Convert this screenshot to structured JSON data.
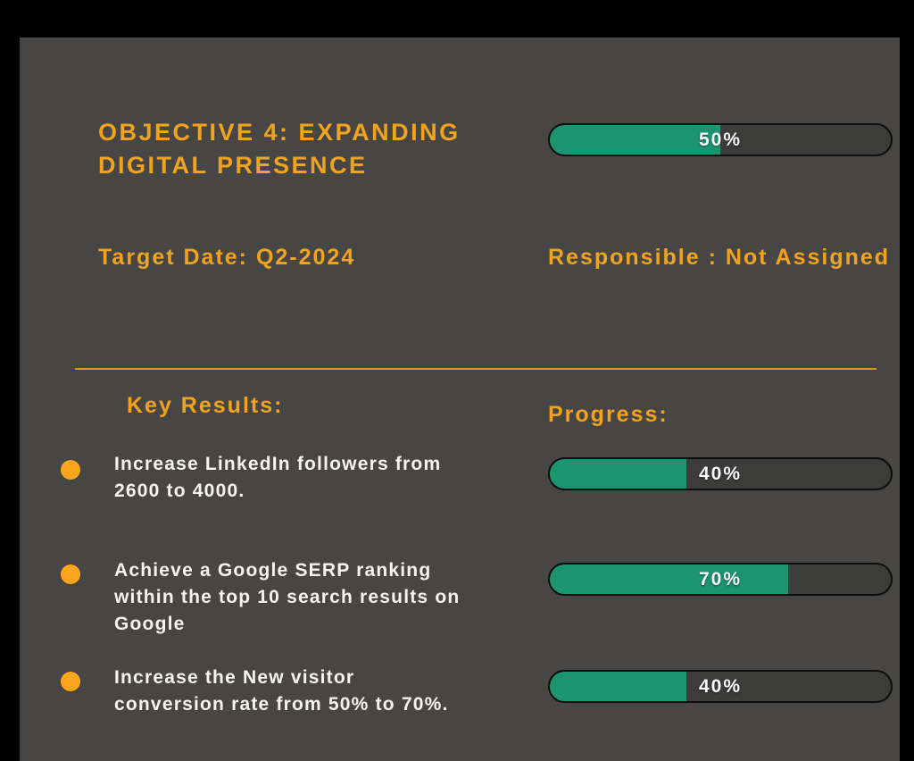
{
  "objective": {
    "title": "OBJECTIVE 4: EXPANDING DIGITAL PRESENCE",
    "target_date_label": "Target Date: Q2-2024",
    "responsible_label": "Responsible : Not Assigned",
    "progress": {
      "value": 50,
      "label": "50%"
    }
  },
  "key_results_section": {
    "heading": "Key Results:",
    "progress_heading": "Progress:",
    "items": [
      {
        "text": "Increase LinkedIn followers from 2600 to 4000.",
        "progress": {
          "value": 40,
          "label": "40%"
        }
      },
      {
        "text": "Achieve a Google SERP ranking within the top 10 search results on Google",
        "progress": {
          "value": 70,
          "label": "70%"
        }
      },
      {
        "text": "Increase the New visitor conversion rate from 50% to 70%.",
        "progress": {
          "value": 40,
          "label": "40%"
        }
      }
    ]
  },
  "colors": {
    "accent_orange": "#F0A41E",
    "bullet_orange": "#FBA51D",
    "progress_green": "#1D9470",
    "bar_track": "#3C3C3B",
    "slide_background": "#484645",
    "frame_background": "#000000",
    "body_text": "#F6F5F4"
  }
}
